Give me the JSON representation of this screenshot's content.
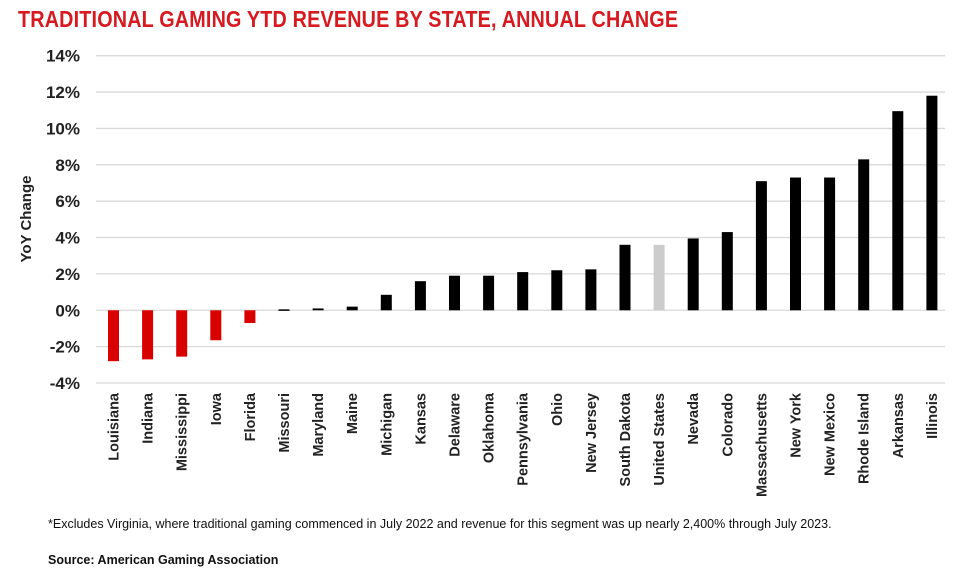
{
  "chart_data": {
    "type": "bar",
    "title": "TRADITIONAL GAMING YTD REVENUE BY STATE, ANNUAL CHANGE",
    "xlabel": "",
    "ylabel": "YoY Change",
    "ylim": [
      -4,
      14
    ],
    "yticks": [
      -4,
      -2,
      0,
      2,
      4,
      6,
      8,
      10,
      12,
      14
    ],
    "ytick_labels": [
      "-4%",
      "-2%",
      "0%",
      "2%",
      "4%",
      "6%",
      "8%",
      "10%",
      "12%",
      "14%"
    ],
    "grid": true,
    "categories": [
      "Louisiana",
      "Indiana",
      "Mississippi",
      "Iowa",
      "Florida",
      "Missouri",
      "Maryland",
      "Maine",
      "Michigan",
      "Kansas",
      "Delaware",
      "Oklahoma",
      "Pennsylvania",
      "Ohio",
      "New Jersey",
      "South Dakota",
      "United States",
      "Nevada",
      "Colorado",
      "Massachusetts",
      "New York",
      "New Mexico",
      "Rhode Island",
      "Arkansas",
      "Illinois"
    ],
    "values": [
      -2.8,
      -2.7,
      -2.55,
      -1.65,
      -0.7,
      0.05,
      0.1,
      0.2,
      0.85,
      1.6,
      1.9,
      1.9,
      2.1,
      2.2,
      2.25,
      3.6,
      3.6,
      3.95,
      4.3,
      7.1,
      7.3,
      7.3,
      8.3,
      10.95,
      11.8
    ],
    "colors": {
      "negative": "#d90000",
      "positive": "#000000",
      "national": "#cccccc",
      "grid": "#d9d9d9"
    },
    "highlight_category": "United States"
  },
  "footnote": "*Excludes Virginia, where traditional gaming commenced in July 2022 and revenue for this segment was up nearly 2,400% through July 2023.",
  "source": "Source: American Gaming Association"
}
